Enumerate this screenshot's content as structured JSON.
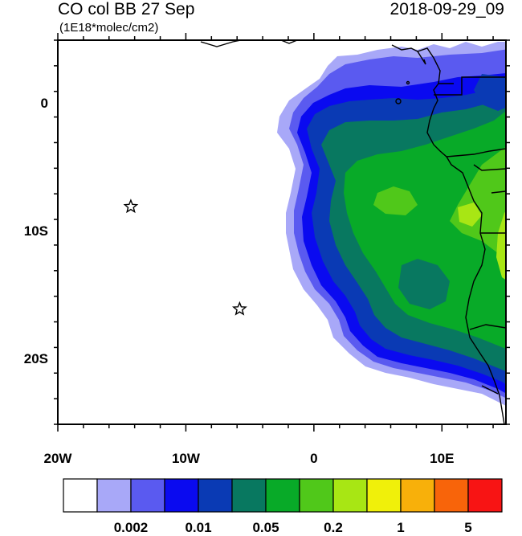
{
  "title": {
    "left": "CO col BB 27 Sep",
    "right": "2018-09-29_09",
    "units": "(1E18*molec/cm2)"
  },
  "map": {
    "lon_range": [
      -20,
      15
    ],
    "lat_range": [
      -25,
      5
    ],
    "lat_labels": [
      {
        "lat": 0,
        "label": "0"
      },
      {
        "lat": -10,
        "label": "10S"
      },
      {
        "lat": -20,
        "label": "20S"
      }
    ],
    "lon_labels": [
      {
        "lon": -20,
        "label": "20W"
      },
      {
        "lon": -10,
        "label": "10W"
      },
      {
        "lon": 0,
        "label": "0"
      },
      {
        "lon": 10,
        "label": "10E"
      }
    ],
    "markers": [
      {
        "symbol": "star",
        "lon": -14.3,
        "lat": -8.0
      },
      {
        "symbol": "star",
        "lon": -5.8,
        "lat": -16.0
      }
    ]
  },
  "colorbar": {
    "colors": [
      "#ffffff",
      "#a8a8f8",
      "#5a5af0",
      "#0a0af0",
      "#0a3ab4",
      "#087860",
      "#08aa28",
      "#50c81a",
      "#a8e614",
      "#f0f00a",
      "#f8b00a",
      "#f8640a",
      "#f81414"
    ],
    "labels": [
      {
        "boundary": 2,
        "label": "0.002"
      },
      {
        "boundary": 4,
        "label": "0.01"
      },
      {
        "boundary": 6,
        "label": "0.05"
      },
      {
        "boundary": 8,
        "label": "0.2"
      },
      {
        "boundary": 10,
        "label": "1"
      },
      {
        "boundary": 12,
        "label": "5"
      }
    ]
  }
}
